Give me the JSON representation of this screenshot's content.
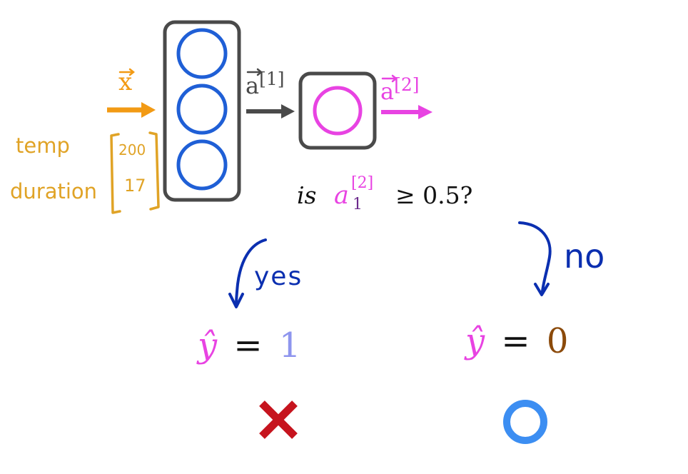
{
  "colors": {
    "input": "#f29a14",
    "annot_orange": "#e0a326",
    "layer_box": "#4a4a4a",
    "neuron_blue": "#1f5fd6",
    "neuron_pink": "#e843e2",
    "arrow_gray": "#4a4a4a",
    "ink_blue": "#0b2fb0",
    "yhat_pink": "#e843e2",
    "val_one": "#8e95ee",
    "val_zero": "#8b4a0a",
    "sub_purple": "#6c2a8c",
    "wrong_red": "#c6141e",
    "right_blue": "#3c8ef2",
    "text_dark": "#111111"
  },
  "diagram": {
    "input_label": "x",
    "features": [
      "temp",
      "duration"
    ],
    "feature_values": [
      "200",
      "17"
    ],
    "hidden_label": "a",
    "hidden_superscript": "[1]",
    "output_label": "a",
    "output_superscript": "[2]",
    "question": {
      "prefix": "is",
      "var": "a",
      "superscript": "[2]",
      "subscript": "1",
      "comparison": "≥ 0.5?"
    },
    "yes_label": "yes",
    "no_label": "no",
    "yhat_symbol": "ŷ",
    "equals": "=",
    "left_value": "1",
    "right_value": "0",
    "left_mark": "wrong-x",
    "right_mark": "correct-circle"
  }
}
